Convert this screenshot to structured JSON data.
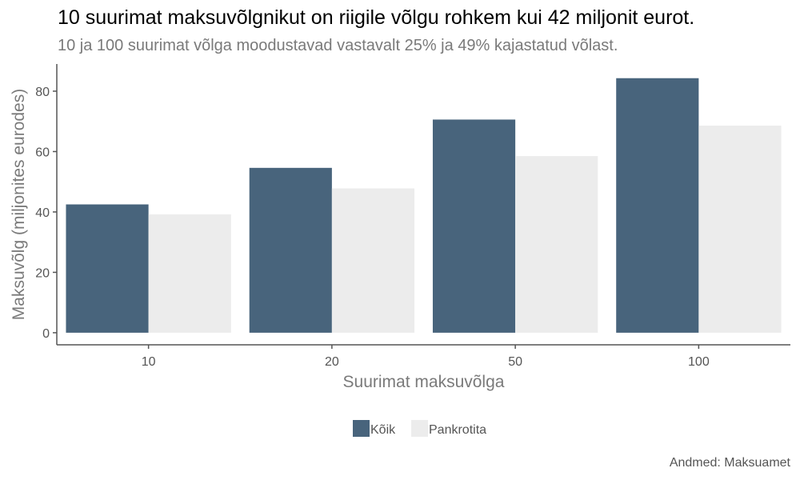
{
  "title": "10 suurimat maksuvõlgnikut on riigile võlgu rohkem kui 42 miljonit eurot.",
  "subtitle": "10 ja 100 suurimat võlga moodustavad vastavalt 25% ja 49% kajastatud võlast.",
  "caption": "Andmed: Maksuamet",
  "colors": {
    "koik": "#48647c",
    "pankrotita": "#ececec",
    "axis": "#555555",
    "text": "#555555"
  },
  "chart_data": {
    "type": "bar",
    "categories": [
      "10",
      "20",
      "50",
      "100"
    ],
    "series": [
      {
        "name": "Kõik",
        "values": [
          42.5,
          54.6,
          70.6,
          84.3
        ]
      },
      {
        "name": "Pankrotita",
        "values": [
          39.2,
          47.8,
          58.5,
          68.6
        ]
      }
    ],
    "xlabel": "Suurimat maksuvõlga",
    "ylabel": "Maksuvõlg (miljonites eurodes)",
    "ylim": [
      -4,
      89
    ],
    "yticks": [
      0,
      20,
      40,
      60,
      80
    ],
    "grid": false,
    "legend": "bottom"
  }
}
